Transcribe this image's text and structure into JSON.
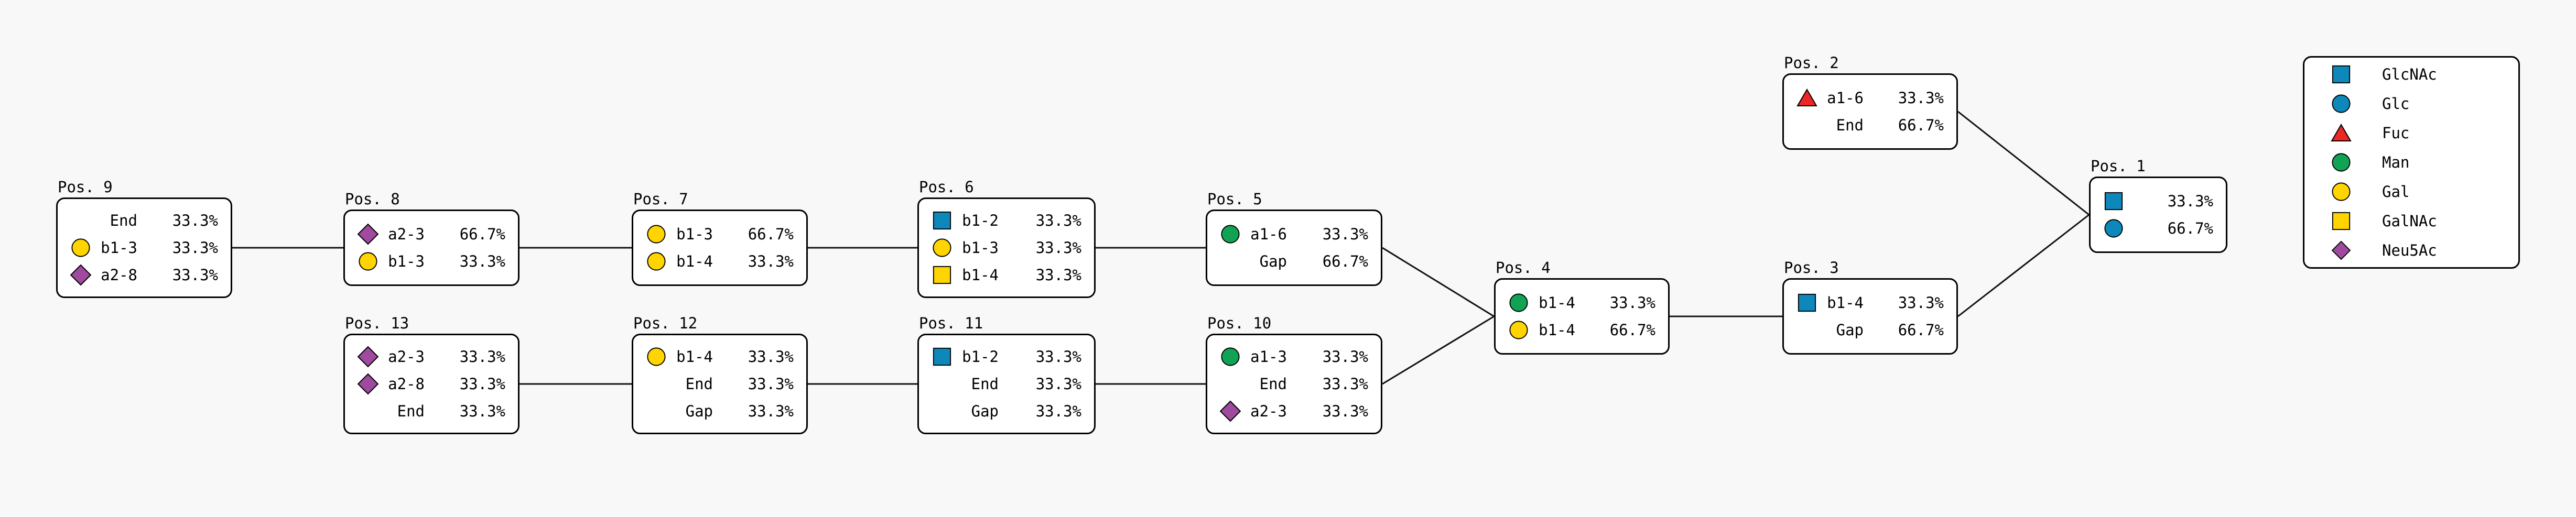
{
  "figure": {
    "background_color": "#f8f8f8",
    "box_fill": "#ffffff",
    "box_border": "#000000",
    "edge_color": "#111111"
  },
  "colors": {
    "GlcNAc": "#0e87ba",
    "Glc": "#0e87ba",
    "Fuc": "#ed2724",
    "Man": "#10a353",
    "Gal": "#ffd400",
    "GalNAc": "#ffd400",
    "Neu5Ac": "#9f4a9f"
  },
  "diagram": {
    "nodes": [
      {
        "id": "pos9",
        "title": "Pos. 9",
        "rows": [
          {
            "icon": null,
            "label": "End",
            "value": "33.3%"
          },
          {
            "icon": "Gal",
            "label": "b1-3",
            "value": "33.3%"
          },
          {
            "icon": "Neu5Ac",
            "label": "a2-8",
            "value": "33.3%"
          }
        ]
      },
      {
        "id": "pos8",
        "title": "Pos. 8",
        "rows": [
          {
            "icon": "Neu5Ac",
            "label": "a2-3",
            "value": "66.7%"
          },
          {
            "icon": "Gal",
            "label": "b1-3",
            "value": "33.3%"
          }
        ]
      },
      {
        "id": "pos7",
        "title": "Pos. 7",
        "rows": [
          {
            "icon": "Gal",
            "label": "b1-3",
            "value": "66.7%"
          },
          {
            "icon": "Gal",
            "label": "b1-4",
            "value": "33.3%"
          }
        ]
      },
      {
        "id": "pos6",
        "title": "Pos. 6",
        "rows": [
          {
            "icon": "GlcNAc",
            "label": "b1-2",
            "value": "33.3%"
          },
          {
            "icon": "Gal",
            "label": "b1-3",
            "value": "33.3%"
          },
          {
            "icon": "GalNAc",
            "label": "b1-4",
            "value": "33.3%"
          }
        ]
      },
      {
        "id": "pos5",
        "title": "Pos. 5",
        "rows": [
          {
            "icon": "Man",
            "label": "a1-6",
            "value": "33.3%"
          },
          {
            "icon": null,
            "label": "Gap",
            "value": "66.7%"
          }
        ]
      },
      {
        "id": "pos4",
        "title": "Pos. 4",
        "rows": [
          {
            "icon": "Man",
            "label": "b1-4",
            "value": "33.3%"
          },
          {
            "icon": "Gal",
            "label": "b1-4",
            "value": "66.7%"
          }
        ]
      },
      {
        "id": "pos3",
        "title": "Pos. 3",
        "rows": [
          {
            "icon": "GlcNAc",
            "label": "b1-4",
            "value": "33.3%"
          },
          {
            "icon": null,
            "label": "Gap",
            "value": "66.7%"
          }
        ]
      },
      {
        "id": "pos2",
        "title": "Pos. 2",
        "rows": [
          {
            "icon": "Fuc",
            "label": "a1-6",
            "value": "33.3%"
          },
          {
            "icon": null,
            "label": "End",
            "value": "66.7%"
          }
        ]
      },
      {
        "id": "pos1",
        "title": "Pos. 1",
        "rows": [
          {
            "icon": "GlcNAc",
            "label": "",
            "value": "33.3%"
          },
          {
            "icon": "Glc",
            "label": "",
            "value": "66.7%"
          }
        ]
      },
      {
        "id": "pos13",
        "title": "Pos. 13",
        "rows": [
          {
            "icon": "Neu5Ac",
            "label": "a2-3",
            "value": "33.3%"
          },
          {
            "icon": "Neu5Ac",
            "label": "a2-8",
            "value": "33.3%"
          },
          {
            "icon": null,
            "label": "End",
            "value": "33.3%"
          }
        ]
      },
      {
        "id": "pos12",
        "title": "Pos. 12",
        "rows": [
          {
            "icon": "Gal",
            "label": "b1-4",
            "value": "33.3%"
          },
          {
            "icon": null,
            "label": "End",
            "value": "33.3%"
          },
          {
            "icon": null,
            "label": "Gap",
            "value": "33.3%"
          }
        ]
      },
      {
        "id": "pos11",
        "title": "Pos. 11",
        "rows": [
          {
            "icon": "GlcNAc",
            "label": "b1-2",
            "value": "33.3%"
          },
          {
            "icon": null,
            "label": "End",
            "value": "33.3%"
          },
          {
            "icon": null,
            "label": "Gap",
            "value": "33.3%"
          }
        ]
      },
      {
        "id": "pos10",
        "title": "Pos. 10",
        "rows": [
          {
            "icon": "Man",
            "label": "a1-3",
            "value": "33.3%"
          },
          {
            "icon": null,
            "label": "End",
            "value": "33.3%"
          },
          {
            "icon": "Neu5Ac",
            "label": "a2-3",
            "value": "33.3%"
          }
        ]
      }
    ],
    "edges": [
      [
        "pos9",
        "pos8"
      ],
      [
        "pos8",
        "pos7"
      ],
      [
        "pos7",
        "pos6"
      ],
      [
        "pos6",
        "pos5"
      ],
      [
        "pos13",
        "pos12"
      ],
      [
        "pos12",
        "pos11"
      ],
      [
        "pos11",
        "pos10"
      ],
      [
        "pos5",
        "pos4"
      ],
      [
        "pos10",
        "pos4"
      ],
      [
        "pos4",
        "pos3"
      ],
      [
        "pos3",
        "pos1"
      ],
      [
        "pos2",
        "pos1"
      ]
    ]
  },
  "legend": {
    "items": [
      {
        "icon": "GlcNAc",
        "label": "GlcNAc"
      },
      {
        "icon": "Glc",
        "label": "Glc"
      },
      {
        "icon": "Fuc",
        "label": "Fuc"
      },
      {
        "icon": "Man",
        "label": "Man"
      },
      {
        "icon": "Gal",
        "label": "Gal"
      },
      {
        "icon": "GalNAc",
        "label": "GalNAc"
      },
      {
        "icon": "Neu5Ac",
        "label": "Neu5Ac"
      }
    ]
  }
}
